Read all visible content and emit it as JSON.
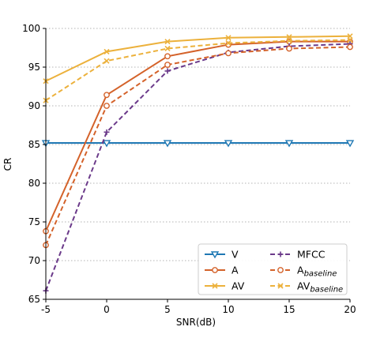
{
  "chart_data": {
    "type": "line",
    "title": "",
    "xlabel": "SNR(dB)",
    "ylabel": "CR",
    "xlim": [
      -5,
      20
    ],
    "ylim": [
      65,
      100
    ],
    "x": [
      -5,
      0,
      5,
      10,
      15,
      20
    ],
    "xticks": [
      "-5",
      "0",
      "5",
      "10",
      "15",
      "20"
    ],
    "yticks": [
      "65",
      "70",
      "75",
      "80",
      "85",
      "90",
      "95",
      "100"
    ],
    "grid": "horizontal dotted",
    "legend_position": "bottom-right",
    "series": [
      {
        "name": "V",
        "name_sub": "",
        "color": "#1f78b4",
        "dash": "solid",
        "marker": "triangle-down",
        "values": [
          85.2,
          85.2,
          85.2,
          85.2,
          85.2,
          85.2
        ]
      },
      {
        "name": "A",
        "name_sub": "",
        "color": "#d4622a",
        "dash": "solid",
        "marker": "circle",
        "values": [
          73.8,
          91.4,
          96.4,
          97.9,
          98.3,
          98.3
        ]
      },
      {
        "name": "AV",
        "name_sub": "",
        "color": "#ecb13c",
        "dash": "solid",
        "marker": "x",
        "values": [
          93.2,
          97.0,
          98.3,
          98.8,
          98.9,
          99.0
        ]
      },
      {
        "name": "MFCC",
        "name_sub": "",
        "color": "#6b3a8a",
        "dash": "dashed",
        "marker": "plus",
        "values": [
          66.1,
          86.6,
          94.5,
          96.9,
          97.7,
          98.0
        ]
      },
      {
        "name": "A",
        "name_sub": "baseline",
        "color": "#d4622a",
        "dash": "dashed",
        "marker": "circle",
        "values": [
          72.0,
          90.0,
          95.3,
          96.8,
          97.4,
          97.6
        ]
      },
      {
        "name": "AV",
        "name_sub": "baseline",
        "color": "#ecb13c",
        "dash": "dashed",
        "marker": "x",
        "values": [
          90.7,
          95.8,
          97.4,
          98.1,
          98.4,
          98.5
        ]
      }
    ]
  }
}
